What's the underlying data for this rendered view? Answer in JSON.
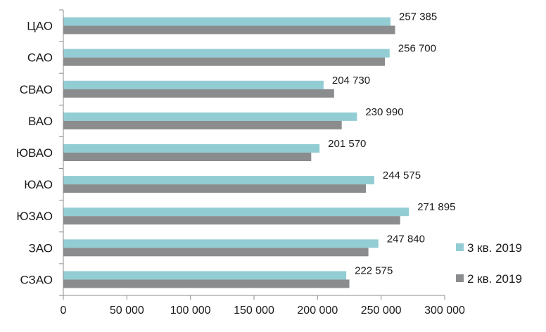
{
  "chart_data": {
    "type": "bar",
    "orientation": "horizontal",
    "categories": [
      "ЦАО",
      "САО",
      "СВАО",
      "ВАО",
      "ЮВАО",
      "ЮАО",
      "ЮЗАО",
      "ЗАО",
      "СЗАО"
    ],
    "series": [
      {
        "name": "3 кв. 2019",
        "color": "#93cdd4",
        "values": [
          257385,
          256700,
          204730,
          230990,
          201570,
          244575,
          271895,
          247840,
          222575
        ],
        "data_labels": [
          "257 385",
          "256 700",
          "204 730",
          "230 990",
          "201 570",
          "244 575",
          "271 895",
          "247 840",
          "222 575"
        ]
      },
      {
        "name": "2 кв. 2019",
        "color": "#8a8c8e",
        "values": [
          261000,
          253000,
          213000,
          219000,
          195000,
          238000,
          265000,
          240000,
          225000
        ]
      }
    ],
    "xlim": [
      0,
      300000
    ],
    "xticks": [
      0,
      50000,
      100000,
      150000,
      200000,
      250000,
      300000
    ],
    "xtick_labels": [
      "0",
      "50 000",
      "100 000",
      "150 000",
      "200 000",
      "250 000",
      "300 000"
    ],
    "title": "",
    "xlabel": "",
    "ylabel": "",
    "legend_position": "right",
    "grid": false
  }
}
